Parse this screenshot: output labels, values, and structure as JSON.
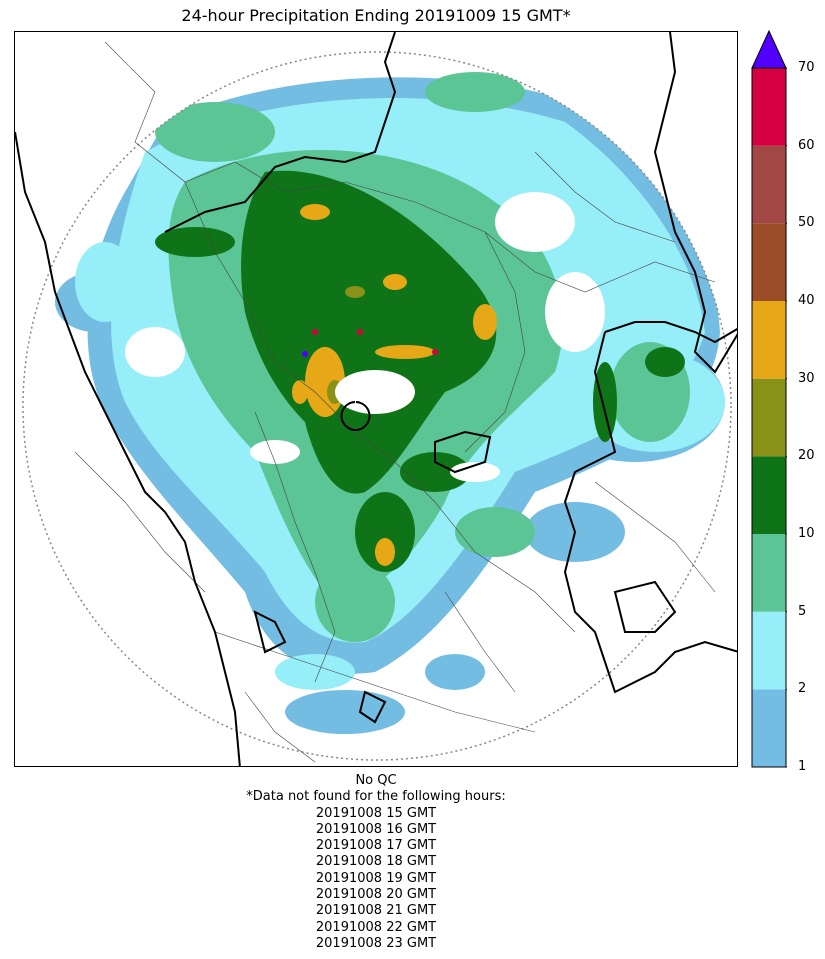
{
  "title": "24-hour Precipitation Ending 20191009 15 GMT*",
  "colorbar": {
    "ticks": [
      "1",
      "2",
      "5",
      "10",
      "20",
      "30",
      "40",
      "50",
      "60",
      "70"
    ],
    "colors": [
      "#74bde2",
      "#96eef8",
      "#5cc596",
      "#0f7317",
      "#8a9118",
      "#e7a817",
      "#9b4d27",
      "#a24844",
      "#d4003f"
    ],
    "overflow_color": "#5100ff"
  },
  "footer": {
    "qc": "No QC",
    "missing_note": "*Data not found for the following hours:",
    "missing_hours": [
      "20191008 15 GMT",
      "20191008 16 GMT",
      "20191008 17 GMT",
      "20191008 18 GMT",
      "20191008 19 GMT",
      "20191008 20 GMT",
      "20191008 21 GMT",
      "20191008 22 GMT",
      "20191008 23 GMT"
    ]
  }
}
